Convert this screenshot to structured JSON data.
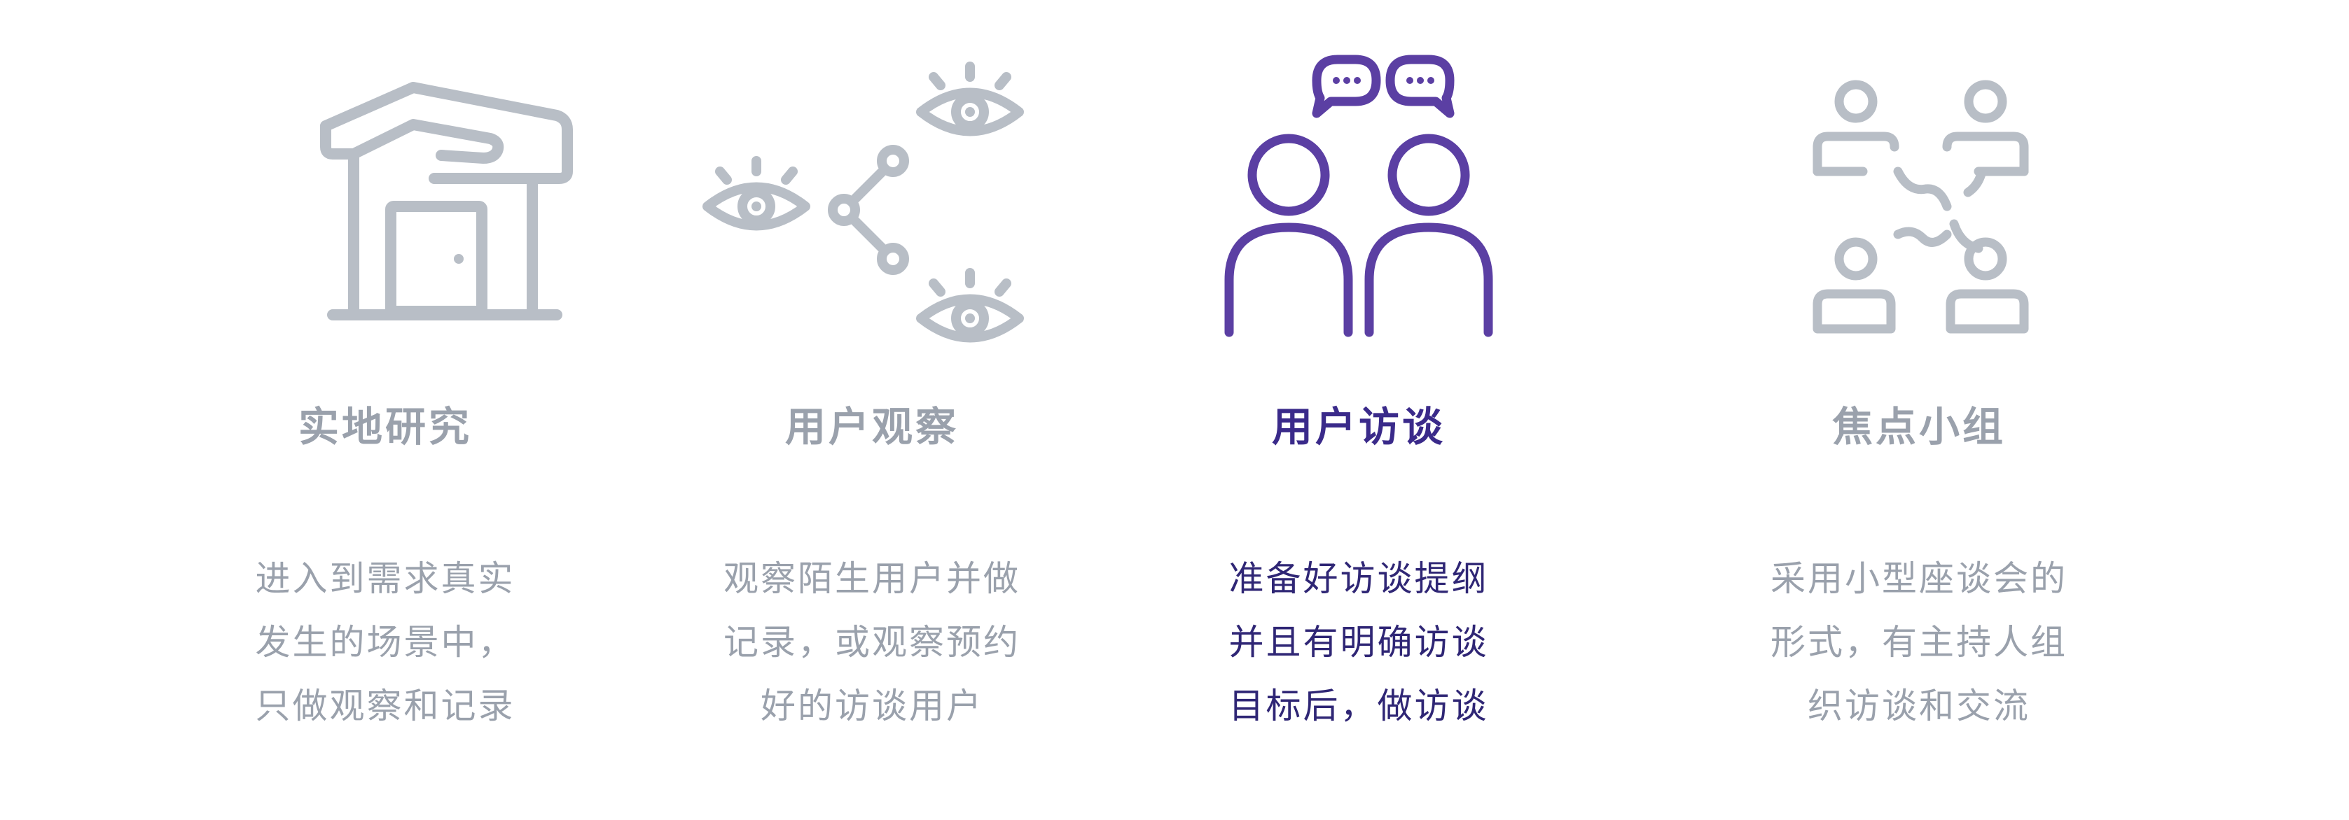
{
  "colors": {
    "inactive": "#b8bec6",
    "inactive_text": "#9aa1ac",
    "active_icon": "#5b3fa3",
    "active_title": "#3a2a8a",
    "active_text": "#2f2675"
  },
  "methods": [
    {
      "title": "实地研究",
      "icon": "house-icon",
      "active": false,
      "lines": [
        "进入到需求真实",
        "发生的场景中，",
        "只做观察和记录"
      ]
    },
    {
      "title": "用户观察",
      "icon": "eyes-network-icon",
      "active": false,
      "lines": [
        "观察陌生用户并做",
        "记录，或观察预约",
        "好的访谈用户"
      ]
    },
    {
      "title": "用户访谈",
      "icon": "two-people-chat-icon",
      "active": true,
      "lines": [
        "准备好访谈提纲",
        "并且有明确访谈",
        "目标后，做访谈"
      ]
    },
    {
      "title": "焦点小组",
      "icon": "group-discussion-icon",
      "active": false,
      "lines": [
        "采用小型座谈会的",
        "形式，有主持人组",
        "织访谈和交流"
      ]
    }
  ]
}
